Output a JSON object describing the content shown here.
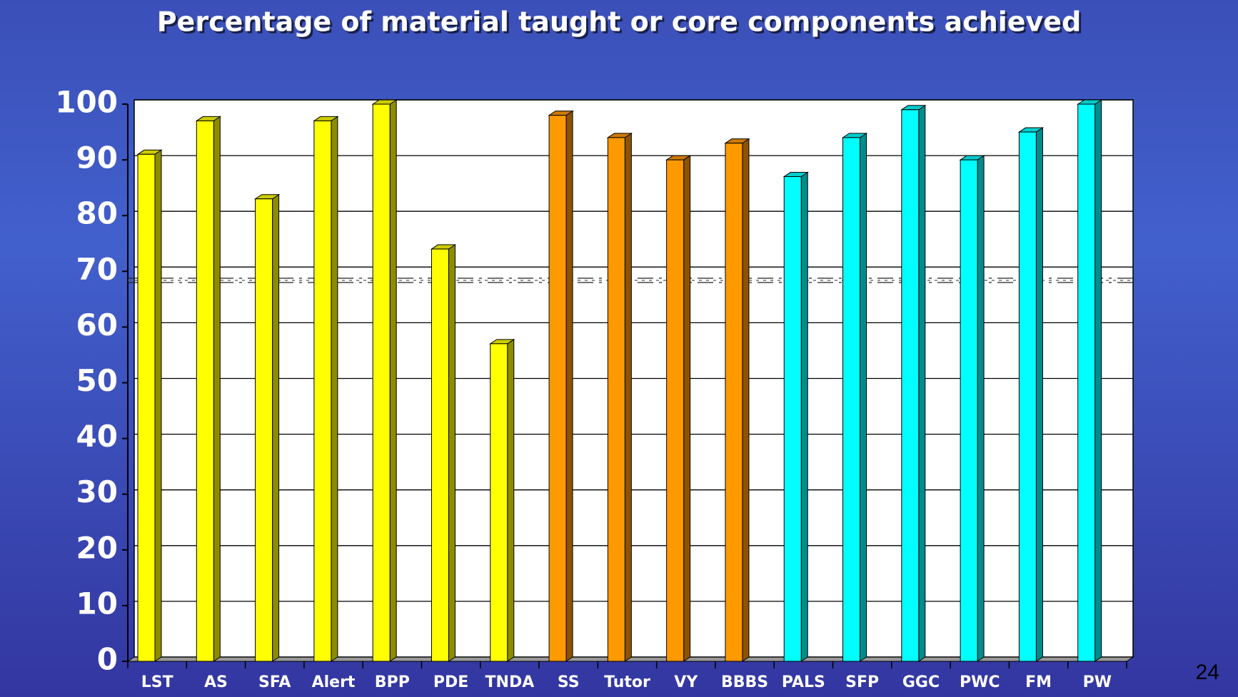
{
  "chart_data": {
    "type": "bar3d",
    "title": "Percentage of material taught or core components achieved",
    "categories": [
      "LST",
      "AS",
      "SFA",
      "Alert",
      "BPP",
      "PDE",
      "TNDA",
      "SS",
      "Tutor",
      "VY",
      "BBBS",
      "PALS",
      "SFP",
      "GGC",
      "PWC",
      "FM",
      "PW"
    ],
    "values": [
      91,
      97,
      83,
      97,
      100,
      74,
      57,
      98,
      94,
      90,
      93,
      87,
      94,
      99,
      90,
      95,
      100
    ],
    "colors": [
      "#ffff00",
      "#ffff00",
      "#ffff00",
      "#ffff00",
      "#ffff00",
      "#ffff00",
      "#ffff00",
      "#ff9900",
      "#ff9900",
      "#ff9900",
      "#ff9900",
      "#00ffff",
      "#00ffff",
      "#00ffff",
      "#00ffff",
      "#00ffff",
      "#00ffff"
    ],
    "ylim": [
      0,
      100
    ],
    "yticks": [
      0,
      10,
      20,
      30,
      40,
      50,
      60,
      70,
      80,
      90,
      100
    ],
    "grid": true,
    "threshold": 68.5,
    "page_number": "24"
  }
}
